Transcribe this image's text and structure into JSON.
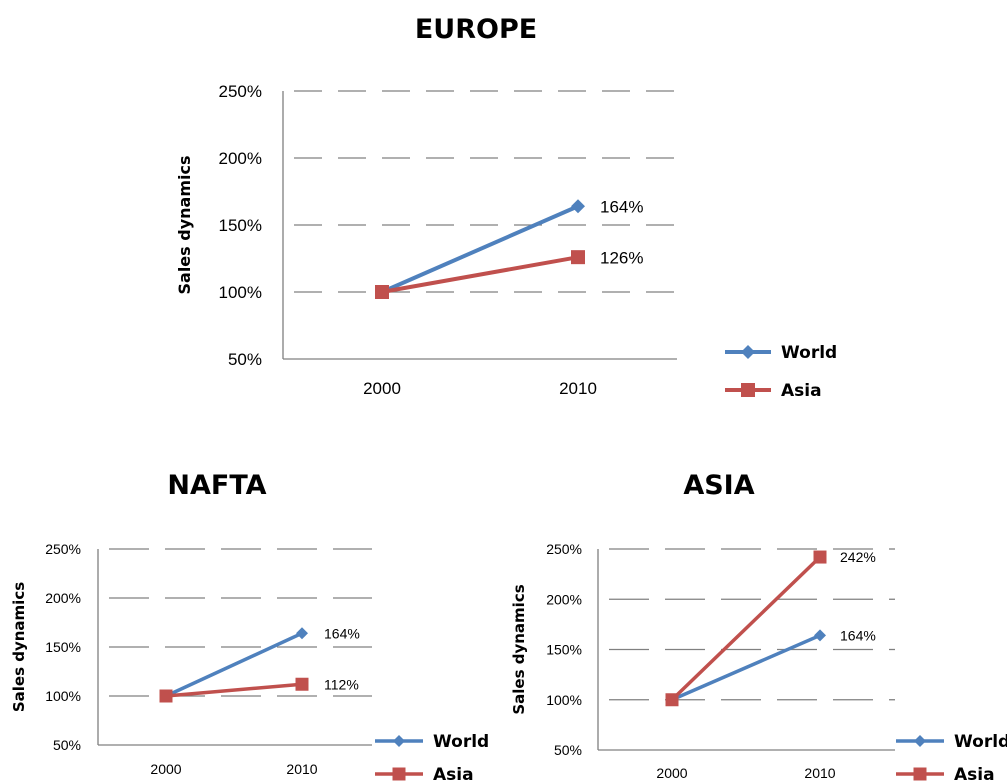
{
  "chart_data": [
    {
      "type": "line",
      "title": "EUROPE",
      "ylabel": "Sales dynamics",
      "xlabel": "",
      "categories": [
        "2000",
        "2010"
      ],
      "ylim": [
        50,
        250
      ],
      "yticks": [
        "50%",
        "100%",
        "150%",
        "200%",
        "250%"
      ],
      "grid": true,
      "legend": "right",
      "series": [
        {
          "name": "World",
          "values": [
            100,
            164
          ],
          "labels": [
            "",
            "164%"
          ],
          "color": "#4F81BD",
          "marker": "diamond"
        },
        {
          "name": "Asia",
          "values": [
            100,
            126
          ],
          "labels": [
            "",
            "126%"
          ],
          "color": "#C0504D",
          "marker": "square"
        }
      ]
    },
    {
      "type": "line",
      "title": "NAFTA",
      "ylabel": "Sales dynamics",
      "xlabel": "",
      "categories": [
        "2000",
        "2010"
      ],
      "ylim": [
        50,
        250
      ],
      "yticks": [
        "50%",
        "100%",
        "150%",
        "200%",
        "250%"
      ],
      "grid": true,
      "legend": "right",
      "series": [
        {
          "name": "World",
          "values": [
            100,
            164
          ],
          "labels": [
            "",
            "164%"
          ],
          "color": "#4F81BD",
          "marker": "diamond"
        },
        {
          "name": "Asia",
          "values": [
            100,
            112
          ],
          "labels": [
            "",
            "112%"
          ],
          "color": "#C0504D",
          "marker": "square"
        }
      ]
    },
    {
      "type": "line",
      "title": "ASIA",
      "ylabel": "Sales dynamics",
      "xlabel": "",
      "categories": [
        "2000",
        "2010"
      ],
      "ylim": [
        50,
        250
      ],
      "yticks": [
        "50%",
        "100%",
        "150%",
        "200%",
        "250%"
      ],
      "grid": true,
      "legend": "right",
      "series": [
        {
          "name": "World",
          "values": [
            100,
            164
          ],
          "labels": [
            "",
            "164%"
          ],
          "color": "#4F81BD",
          "marker": "diamond"
        },
        {
          "name": "Asia",
          "values": [
            100,
            242
          ],
          "labels": [
            "",
            "242%"
          ],
          "color": "#C0504D",
          "marker": "square"
        }
      ]
    }
  ]
}
